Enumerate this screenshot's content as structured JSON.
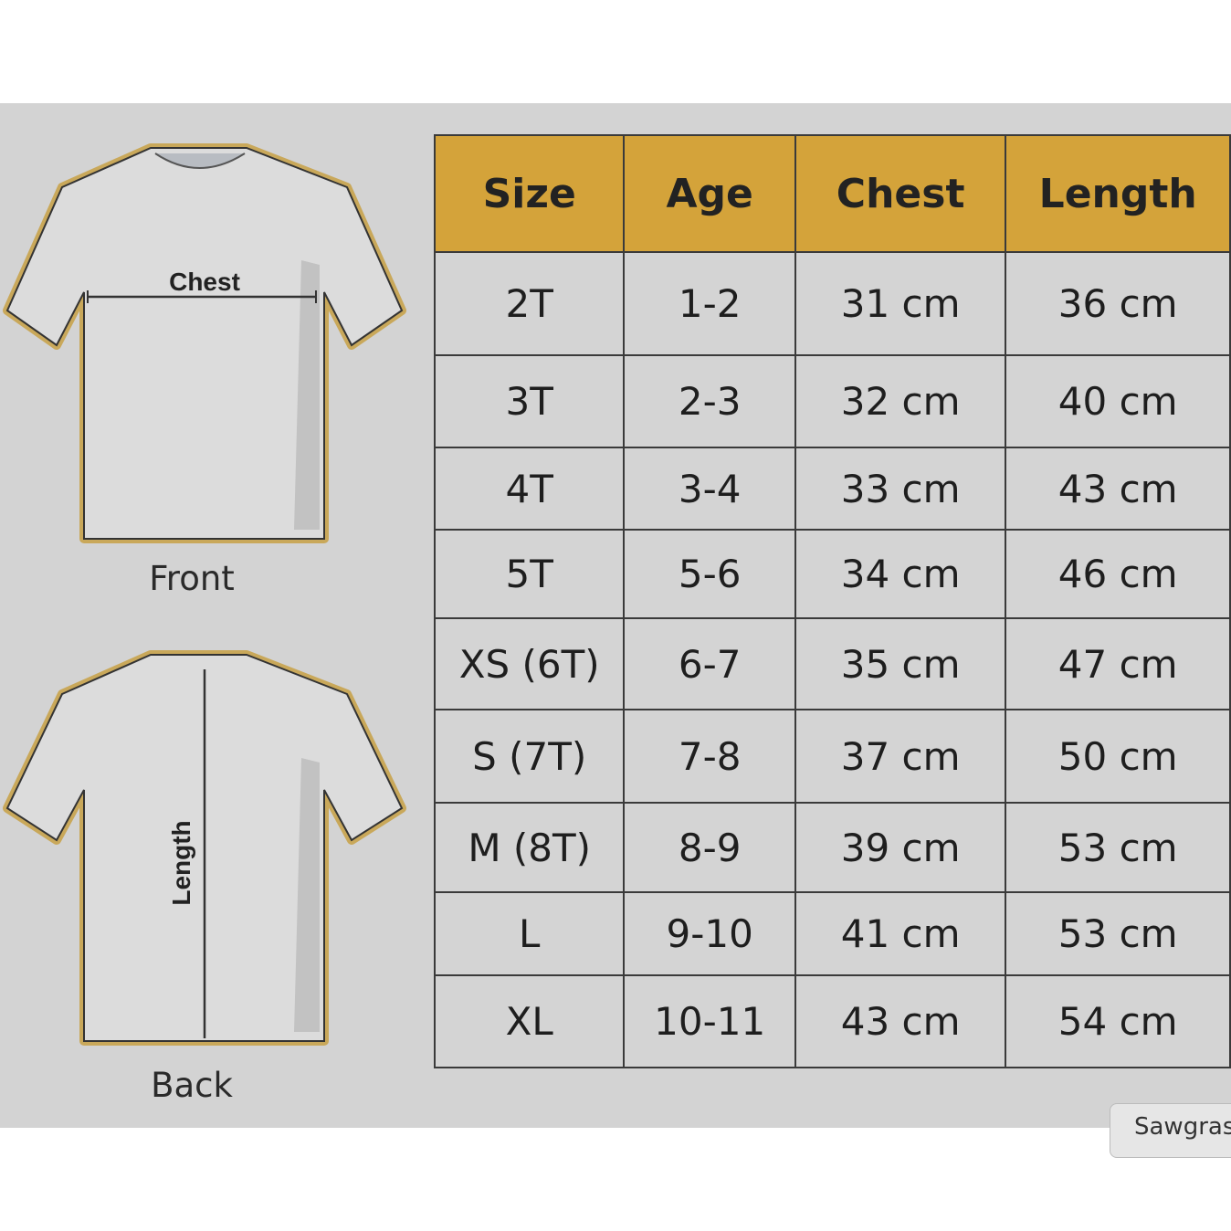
{
  "diagram": {
    "front_label": "Front",
    "back_label": "Back",
    "chest_label": "Chest",
    "length_label": "Length"
  },
  "table": {
    "headers": [
      "Size",
      "Age",
      "Chest",
      "Length"
    ],
    "rows": [
      [
        "2T",
        "1-2",
        "31 cm",
        "36 cm"
      ],
      [
        "3T",
        "2-3",
        "32 cm",
        "40 cm"
      ],
      [
        "4T",
        "3-4",
        "33 cm",
        "43 cm"
      ],
      [
        "5T",
        "5-6",
        "34 cm",
        "46 cm"
      ],
      [
        "XS (6T)",
        "6-7",
        "35 cm",
        "47 cm"
      ],
      [
        "S (7T)",
        "7-8",
        "37 cm",
        "50 cm"
      ],
      [
        "M (8T)",
        "8-9",
        "39 cm",
        "53 cm"
      ],
      [
        "L",
        "9-10",
        "41 cm",
        "53 cm"
      ],
      [
        "XL",
        "10-11",
        "43 cm",
        "54 cm"
      ]
    ]
  },
  "tab_partial": "Sawgras",
  "colors": {
    "header": "#d4a33a",
    "background": "#d3d3d3",
    "outline": "#c9a85a"
  }
}
